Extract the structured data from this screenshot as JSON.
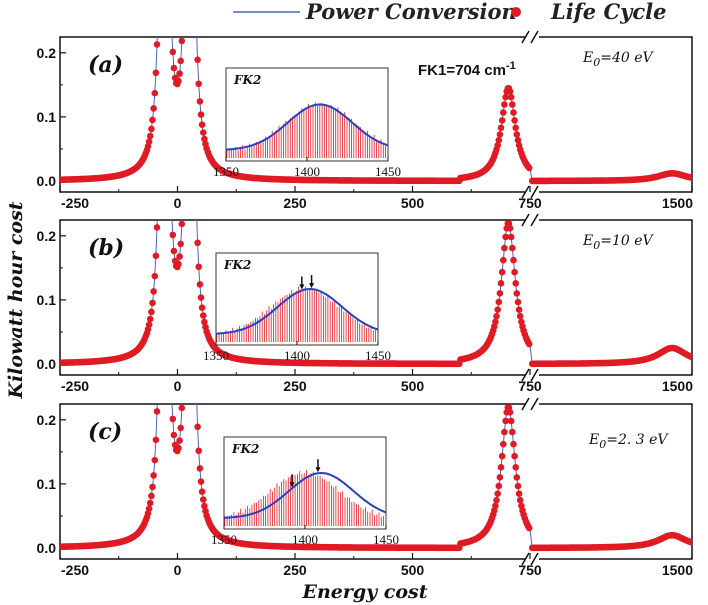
{
  "chart_data": {
    "type": "scatter",
    "legend": [
      {
        "name": "Power Conversion",
        "style": "line",
        "color": "#4a63c8"
      },
      {
        "name": "Life Cycle",
        "style": "marker",
        "color": "#e01b24"
      }
    ],
    "xlabel": "Energy cost",
    "ylabel": "Kilowatt hour cost",
    "colors": {
      "data": "#e01b24",
      "fit": "#2b3fbf",
      "axis": "#111111",
      "thin_line": "#4a63c8"
    },
    "panels": [
      {
        "label": "(a)",
        "energy": "E0=40 eV",
        "energy_prefix": "E",
        "energy_sub": "0",
        "energy_value": "=40 eV",
        "annotation": "FK1=704 cm",
        "annotation_sup": "-1",
        "yticks": [
          "0.2",
          "0.1",
          "0.0"
        ],
        "xticks": [
          "-250",
          "0",
          "250",
          "500",
          "750",
          "1500"
        ],
        "peak_height": 0.145,
        "fk2_height": 0.012,
        "inset": {
          "title": "FK2",
          "xticks": [
            "1350",
            "1400",
            "1450"
          ],
          "xlim": [
            1350,
            1450
          ],
          "fit_center": 1408,
          "arrows": []
        }
      },
      {
        "label": "(b)",
        "energy": "E0=10 eV",
        "energy_prefix": "E",
        "energy_sub": "0",
        "energy_value": "=10 eV",
        "yticks": [
          "0.2",
          "0.1",
          "0.0"
        ],
        "xticks": [
          "-250",
          "0",
          "250",
          "500",
          "750",
          "1500"
        ],
        "peak_height": 0.22,
        "fk2_height": 0.025,
        "inset": {
          "title": "FK2",
          "xticks": [
            "1350",
            "1400",
            "1450"
          ],
          "xlim": [
            1350,
            1450
          ],
          "fit_center": 1408,
          "arrows": [
            1403,
            1409
          ]
        }
      },
      {
        "label": "(c)",
        "energy": "E0=2. 3  eV",
        "energy_prefix": "E",
        "energy_sub": "0",
        "energy_value": "=2. 3  eV",
        "yticks": [
          "0.2",
          "0.1",
          "0.0"
        ],
        "xticks": [
          "-250",
          "0",
          "250",
          "500",
          "750",
          "1500"
        ],
        "peak_height": 0.22,
        "fk2_height": 0.02,
        "inset": {
          "title": "FK2",
          "xticks": [
            "1350",
            "1400",
            "1450"
          ],
          "xlim": [
            1350,
            1450
          ],
          "fit_center": 1410,
          "arrows": [
            1392,
            1408
          ]
        }
      }
    ]
  }
}
